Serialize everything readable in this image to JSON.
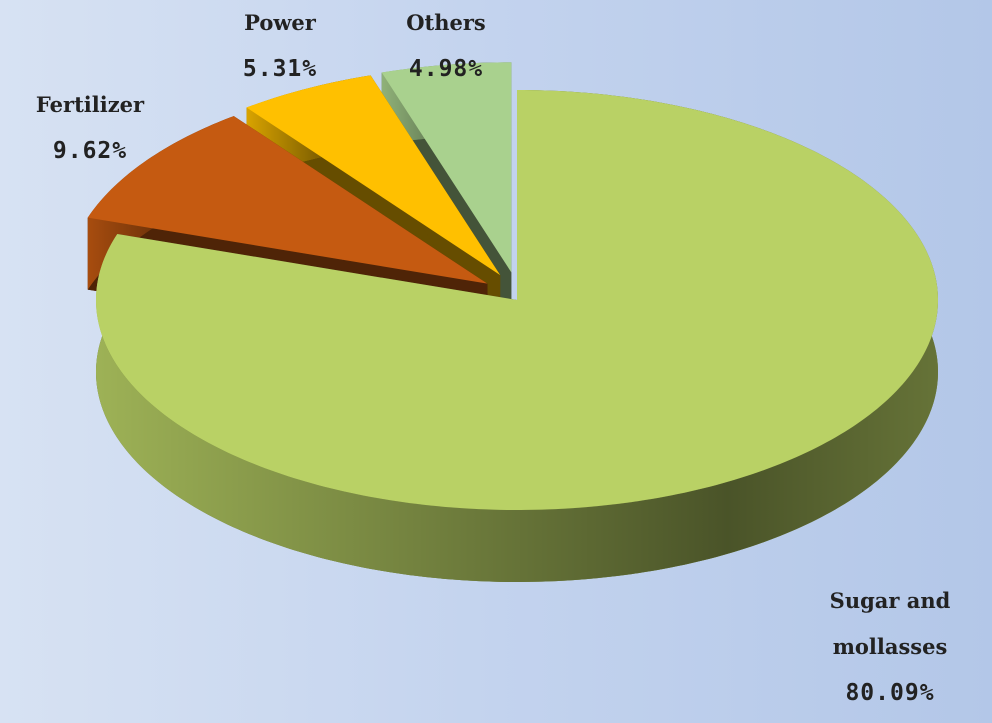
{
  "chart_data": {
    "type": "pie3d",
    "categories": [
      "Sugar and mollasses",
      "Fertilizer",
      "Power",
      "Others"
    ],
    "values": [
      80.09,
      9.62,
      5.31,
      4.98
    ],
    "value_labels": [
      "80.09%",
      "9.62%",
      "5.31%",
      "4.98%"
    ],
    "colors": [
      "#b9d165",
      "#c55a11",
      "#ffc000",
      "#a9d18e"
    ]
  }
}
